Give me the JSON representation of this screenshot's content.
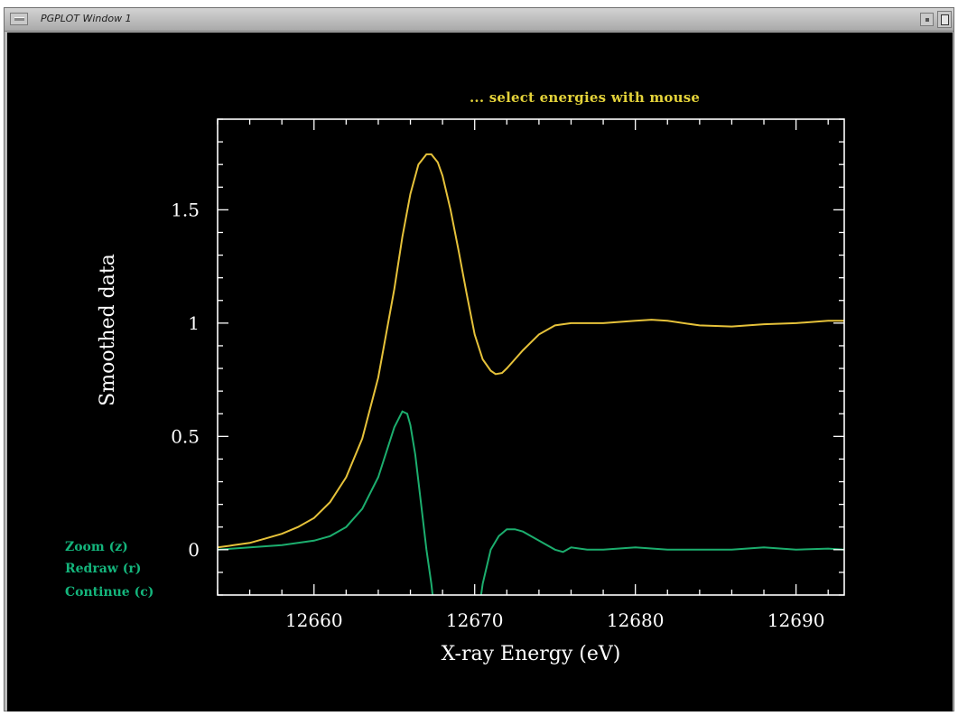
{
  "window": {
    "title": "PGPLOT Window 1",
    "menu_icon": "window-menu-icon",
    "minimize_icon": "minimize-icon",
    "maximize_icon": "maximize-icon"
  },
  "plot": {
    "hint_text": "... select energies with mouse",
    "menu": [
      {
        "label": "Zoom (z)"
      },
      {
        "label": "Redraw (r)"
      },
      {
        "label": "Continue (c)"
      }
    ]
  },
  "colors": {
    "background": "#000000",
    "axes": "#ffffff",
    "series_smoothed": "#e6c23a",
    "series_derivative": "#1cae6e",
    "hint": "#e3d23a",
    "menu": "#14b57c"
  },
  "chart_data": {
    "type": "line",
    "title": "",
    "xlabel": "X-ray Energy (eV)",
    "ylabel": "Smoothed data",
    "xlim": [
      12654,
      12693
    ],
    "ylim": [
      -0.2,
      1.9
    ],
    "xticks": [
      12660,
      12670,
      12680,
      12690
    ],
    "yticks": [
      0,
      0.5,
      1,
      1.5
    ],
    "ytick_labels": [
      "0",
      "0.5",
      "1",
      "1.5"
    ],
    "grid": false,
    "series": [
      {
        "color": "#e6c23a",
        "x": [
          12654,
          12655,
          12656,
          12657,
          12658,
          12659,
          12660,
          12661,
          12662,
          12663,
          12664,
          12665,
          12665.5,
          12666,
          12666.5,
          12667,
          12667.3,
          12667.7,
          12668,
          12668.5,
          12669,
          12669.5,
          12670,
          12670.5,
          12671,
          12671.3,
          12671.7,
          12672,
          12672.5,
          12673,
          12674,
          12675,
          12676,
          12678,
          12680,
          12681,
          12682,
          12684,
          12686,
          12688,
          12690,
          12692,
          12693
        ],
        "y": [
          0.01,
          0.02,
          0.03,
          0.05,
          0.07,
          0.1,
          0.14,
          0.21,
          0.32,
          0.49,
          0.76,
          1.15,
          1.38,
          1.57,
          1.7,
          1.745,
          1.745,
          1.71,
          1.65,
          1.5,
          1.32,
          1.13,
          0.95,
          0.84,
          0.79,
          0.775,
          0.78,
          0.8,
          0.84,
          0.88,
          0.95,
          0.99,
          1.0,
          1.0,
          1.01,
          1.015,
          1.01,
          0.99,
          0.985,
          0.995,
          1.0,
          1.01,
          1.01
        ]
      },
      {
        "color": "#1cae6e",
        "x": [
          12654,
          12656,
          12658,
          12659,
          12660,
          12661,
          12662,
          12663,
          12664,
          12664.5,
          12665,
          12665.5,
          12665.8,
          12666,
          12666.3,
          12666.7,
          12667,
          12667.3,
          12667.7,
          12670,
          12670.5,
          12671,
          12671.5,
          12672,
          12672.5,
          12673,
          12673.5,
          12674,
          12675,
          12675.5,
          12676,
          12677,
          12678,
          12680,
          12682,
          12684,
          12686,
          12688,
          12690,
          12692,
          12693
        ],
        "y": [
          0.0,
          0.01,
          0.02,
          0.03,
          0.04,
          0.06,
          0.1,
          0.18,
          0.32,
          0.43,
          0.54,
          0.61,
          0.6,
          0.55,
          0.42,
          0.18,
          0.0,
          -0.15,
          -0.4,
          -0.4,
          -0.15,
          0.0,
          0.06,
          0.09,
          0.09,
          0.08,
          0.06,
          0.04,
          0.0,
          -0.01,
          0.01,
          0.0,
          0.0,
          0.01,
          0.0,
          0.0,
          0.0,
          0.01,
          0.0,
          0.005,
          0.0
        ]
      }
    ]
  }
}
